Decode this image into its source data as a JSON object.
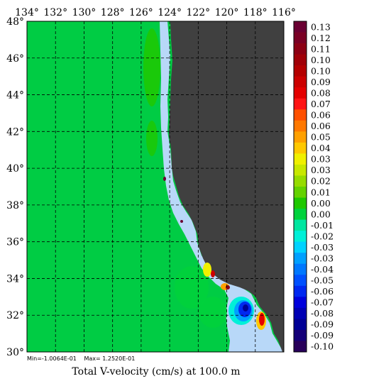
{
  "map": {
    "caption": "Total V-velocity (cm/s) at 100.0 m",
    "min_label": "Min=-1.0064E-01",
    "max_label": "Max= 1.2520E-01",
    "lon_labels": [
      "134°",
      "132°",
      "130°",
      "128°",
      "126°",
      "124°",
      "122°",
      "120°",
      "118°",
      "116°"
    ],
    "lat_labels": [
      "48°",
      "46°",
      "44°",
      "42°",
      "40°",
      "38°",
      "36°",
      "34°",
      "32°",
      "30°"
    ],
    "grid_lines": "dashed",
    "colors": {
      "ocean": "#00cc44",
      "land": "#404040",
      "coast_fringe": "#b8d8f8",
      "frame": "#000000"
    },
    "legend": {
      "placement": "right",
      "labels": [
        "0.13",
        "0.12",
        "0.11",
        "0.10",
        "0.10",
        "0.09",
        "0.08",
        "0.07",
        "0.06",
        "0.06",
        "0.05",
        "0.04",
        "0.03",
        "0.03",
        "0.02",
        "0.01",
        "0.00",
        "0.00",
        "-0.01",
        "-0.02",
        "-0.03",
        "-0.03",
        "-0.04",
        "-0.05",
        "-0.06",
        "-0.07",
        "-0.08",
        "-0.09",
        "-0.09",
        "-0.10"
      ],
      "colors": [
        "#6a0032",
        "#7a0024",
        "#8c0014",
        "#a00008",
        "#b40000",
        "#cc0000",
        "#e40000",
        "#ff1414",
        "#ff5000",
        "#ff7800",
        "#ffa000",
        "#ffc800",
        "#f0f000",
        "#c8e800",
        "#96dc00",
        "#64d200",
        "#1ec800",
        "#00d23c",
        "#00e6a0",
        "#00f0d8",
        "#00d2ff",
        "#00a0ff",
        "#0078ff",
        "#0050ff",
        "#0028f0",
        "#0000dc",
        "#0000b4",
        "#000096",
        "#140078",
        "#28005a"
      ]
    }
  }
}
